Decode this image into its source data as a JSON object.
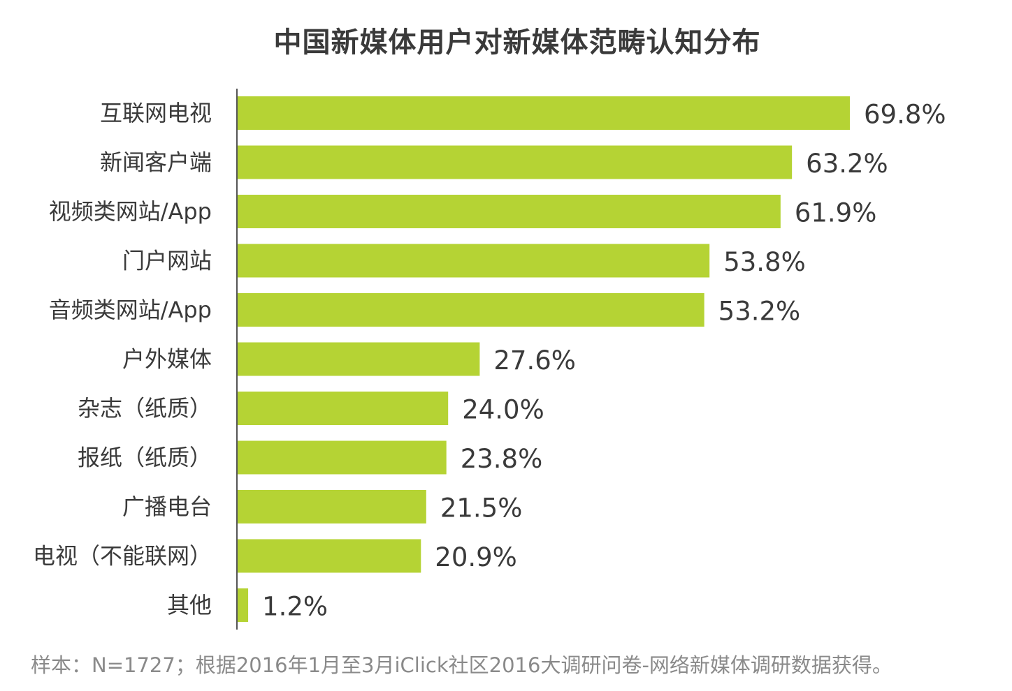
{
  "chart_data": {
    "type": "bar",
    "orientation": "horizontal",
    "title": "中国新媒体用户对新媒体范畴认知分布",
    "categories": [
      "互联网电视",
      "新闻客户端",
      "视频类网站/App",
      "门户网站",
      "音频类网站/App",
      "户外媒体",
      "杂志（纸质）",
      "报纸（纸质）",
      "广播电台",
      "电视（不能联网）",
      "其他"
    ],
    "values": [
      69.8,
      63.2,
      61.9,
      53.8,
      53.2,
      27.6,
      24.0,
      23.8,
      21.5,
      20.9,
      1.2
    ],
    "value_labels": [
      "69.8%",
      "63.2%",
      "61.9%",
      "53.8%",
      "53.2%",
      "27.6%",
      "24.0%",
      "23.8%",
      "21.5%",
      "20.9%",
      "1.2%"
    ],
    "unit": "%",
    "xlim": [
      0,
      100
    ],
    "grid": false,
    "legend": "none",
    "bar_color": "#b5d334",
    "axis_color": "#555555"
  },
  "footnote": "样本：N=1727；根据2016年1月至3月iClick社区2016大调研问卷-网络新媒体调研数据获得。"
}
